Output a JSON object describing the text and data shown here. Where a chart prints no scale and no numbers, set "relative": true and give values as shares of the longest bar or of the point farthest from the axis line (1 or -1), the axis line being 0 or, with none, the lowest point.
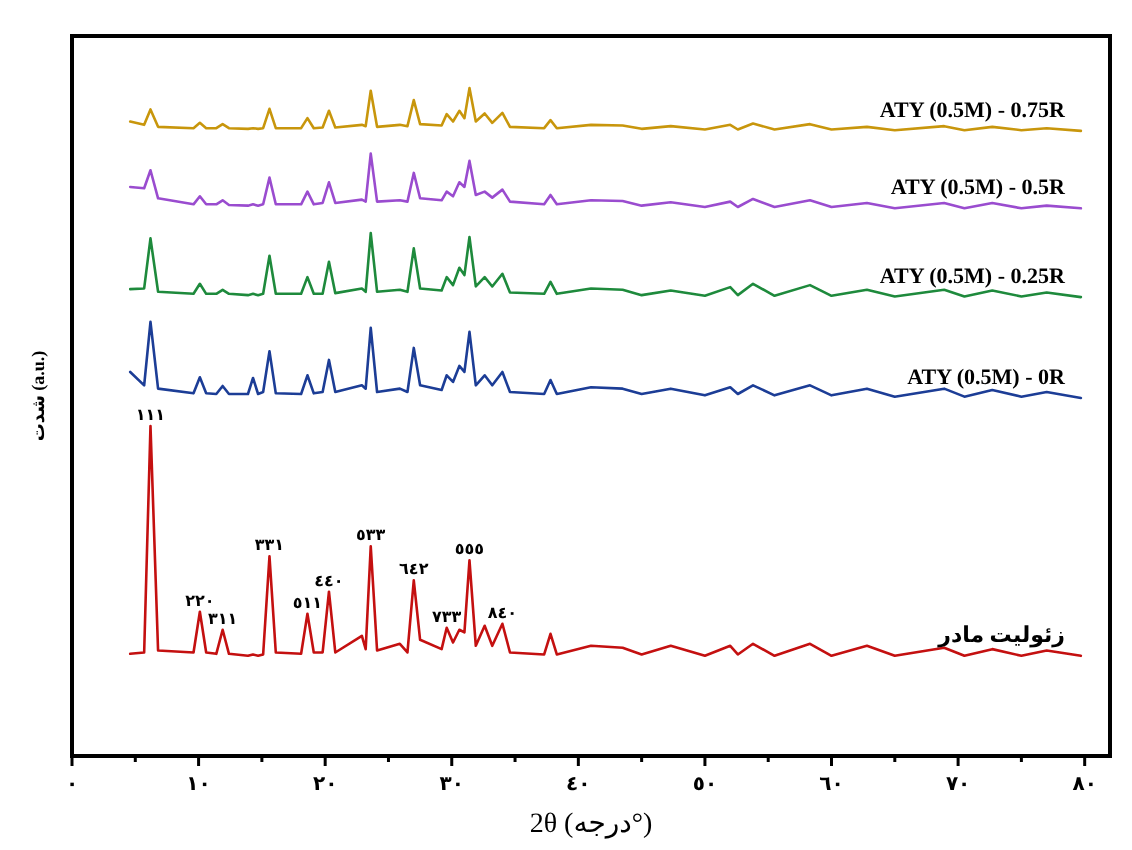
{
  "chart_data": {
    "type": "line",
    "relative": true,
    "xlabel": "2θ (درجه°)",
    "ylabel": "شدت (a.u.)",
    "xlim": [
      0,
      82
    ],
    "xticks": [
      {
        "value": 0,
        "label": "٠"
      },
      {
        "value": 5,
        "label": null
      },
      {
        "value": 10,
        "label": "١٠"
      },
      {
        "value": 15,
        "label": null
      },
      {
        "value": 20,
        "label": "٢٠"
      },
      {
        "value": 25,
        "label": null
      },
      {
        "value": 30,
        "label": "٣٠"
      },
      {
        "value": 35,
        "label": null
      },
      {
        "value": 40,
        "label": "٤٠"
      },
      {
        "value": 45,
        "label": null
      },
      {
        "value": 50,
        "label": "٥٠"
      },
      {
        "value": 55,
        "label": null
      },
      {
        "value": 60,
        "label": "٦٠"
      },
      {
        "value": 65,
        "label": null
      },
      {
        "value": 70,
        "label": "٧٠"
      },
      {
        "value": 75,
        "label": null
      },
      {
        "value": 80,
        "label": "٨٠"
      }
    ],
    "x": [
      4.6,
      5.7,
      6.2,
      6.8,
      9.6,
      10.1,
      10.6,
      11.4,
      11.9,
      12.4,
      13.9,
      14.3,
      14.7,
      15.1,
      15.6,
      16.1,
      18.1,
      18.6,
      19.1,
      19.8,
      20.3,
      20.8,
      22.9,
      23.2,
      23.6,
      24.1,
      25.9,
      26.5,
      27.0,
      27.5,
      29.2,
      29.6,
      30.1,
      30.6,
      31.0,
      31.4,
      31.9,
      32.6,
      33.2,
      34.0,
      34.6,
      37.3,
      37.8,
      38.3,
      41.0,
      43.5,
      45.0,
      47.3,
      50.0,
      52.0,
      52.6,
      53.8,
      55.5,
      58.3,
      60.0,
      62.8,
      65.0,
      68.9,
      70.5,
      72.7,
      75.0,
      77.0,
      79.7
    ],
    "series": [
      {
        "name": "ATY (0.5M) - 0.75R",
        "color": "#c8960c",
        "values": [
          0.95,
          0.945,
          0.968,
          0.942,
          0.94,
          0.948,
          0.94,
          0.94,
          0.946,
          0.94,
          0.939,
          0.94,
          0.939,
          0.94,
          0.969,
          0.94,
          0.94,
          0.955,
          0.94,
          0.941,
          0.966,
          0.941,
          0.945,
          0.943,
          0.996,
          0.942,
          0.945,
          0.943,
          0.982,
          0.946,
          0.944,
          0.961,
          0.95,
          0.966,
          0.955,
          1.0,
          0.95,
          0.962,
          0.948,
          0.963,
          0.942,
          0.94,
          0.952,
          0.94,
          0.945,
          0.944,
          0.939,
          0.943,
          0.938,
          0.945,
          0.938,
          0.947,
          0.938,
          0.946,
          0.938,
          0.942,
          0.937,
          0.943,
          0.937,
          0.942,
          0.937,
          0.94,
          0.936
        ]
      },
      {
        "name": "ATY (0.5M) - 0.5R",
        "color": "#9a4ccf",
        "values": [
          0.852,
          0.85,
          0.877,
          0.835,
          0.826,
          0.838,
          0.826,
          0.826,
          0.832,
          0.825,
          0.824,
          0.826,
          0.824,
          0.826,
          0.866,
          0.826,
          0.826,
          0.845,
          0.826,
          0.828,
          0.859,
          0.828,
          0.833,
          0.83,
          0.902,
          0.83,
          0.832,
          0.83,
          0.873,
          0.835,
          0.832,
          0.845,
          0.838,
          0.859,
          0.852,
          0.891,
          0.84,
          0.845,
          0.836,
          0.848,
          0.83,
          0.826,
          0.84,
          0.826,
          0.832,
          0.831,
          0.824,
          0.829,
          0.822,
          0.83,
          0.822,
          0.834,
          0.822,
          0.832,
          0.822,
          0.828,
          0.82,
          0.828,
          0.82,
          0.828,
          0.82,
          0.824,
          0.82
        ]
      },
      {
        "name": "ATY (0.5M) - 0.25R",
        "color": "#1e8a3c",
        "values": [
          0.699,
          0.7,
          0.775,
          0.695,
          0.692,
          0.707,
          0.692,
          0.692,
          0.698,
          0.692,
          0.69,
          0.692,
          0.69,
          0.692,
          0.749,
          0.692,
          0.692,
          0.717,
          0.692,
          0.692,
          0.74,
          0.693,
          0.7,
          0.695,
          0.783,
          0.695,
          0.698,
          0.695,
          0.76,
          0.7,
          0.697,
          0.717,
          0.705,
          0.731,
          0.72,
          0.777,
          0.703,
          0.717,
          0.703,
          0.722,
          0.694,
          0.692,
          0.71,
          0.692,
          0.7,
          0.698,
          0.69,
          0.697,
          0.689,
          0.702,
          0.69,
          0.707,
          0.689,
          0.705,
          0.689,
          0.698,
          0.688,
          0.698,
          0.688,
          0.697,
          0.688,
          0.694,
          0.687
        ]
      },
      {
        "name": "ATY (0.5M) - 0R",
        "color": "#1c3d96",
        "values": [
          0.575,
          0.555,
          0.65,
          0.55,
          0.543,
          0.567,
          0.543,
          0.542,
          0.554,
          0.542,
          0.542,
          0.566,
          0.542,
          0.545,
          0.606,
          0.543,
          0.542,
          0.57,
          0.543,
          0.545,
          0.593,
          0.545,
          0.555,
          0.55,
          0.641,
          0.545,
          0.55,
          0.545,
          0.611,
          0.555,
          0.548,
          0.57,
          0.56,
          0.584,
          0.575,
          0.635,
          0.555,
          0.57,
          0.555,
          0.575,
          0.545,
          0.542,
          0.563,
          0.542,
          0.552,
          0.55,
          0.542,
          0.55,
          0.54,
          0.552,
          0.542,
          0.555,
          0.54,
          0.555,
          0.54,
          0.55,
          0.538,
          0.55,
          0.538,
          0.548,
          0.538,
          0.545,
          0.536
        ]
      },
      {
        "name": "زئولیت مادر",
        "color": "#c41010",
        "values": [
          0.153,
          0.155,
          0.494,
          0.158,
          0.155,
          0.216,
          0.155,
          0.153,
          0.189,
          0.153,
          0.15,
          0.152,
          0.15,
          0.152,
          0.299,
          0.155,
          0.153,
          0.213,
          0.155,
          0.155,
          0.246,
          0.155,
          0.18,
          0.16,
          0.314,
          0.158,
          0.168,
          0.155,
          0.263,
          0.174,
          0.16,
          0.192,
          0.17,
          0.189,
          0.185,
          0.293,
          0.165,
          0.195,
          0.165,
          0.198,
          0.155,
          0.152,
          0.183,
          0.152,
          0.165,
          0.162,
          0.152,
          0.165,
          0.15,
          0.165,
          0.152,
          0.168,
          0.15,
          0.168,
          0.15,
          0.165,
          0.15,
          0.162,
          0.15,
          0.16,
          0.15,
          0.158,
          0.15
        ]
      }
    ],
    "annotations": [
      {
        "text": "١١١",
        "x": 6.2,
        "y": 0.494
      },
      {
        "text": "٢٢٠",
        "x": 10.1,
        "y": 0.216
      },
      {
        "text": "٣١١",
        "x": 11.9,
        "y": 0.189
      },
      {
        "text": "٣٣١",
        "x": 15.6,
        "y": 0.299
      },
      {
        "text": "٥١١",
        "x": 18.6,
        "y": 0.213
      },
      {
        "text": "٤٤٠",
        "x": 20.3,
        "y": 0.246
      },
      {
        "text": "٥٣٣",
        "x": 23.6,
        "y": 0.314
      },
      {
        "text": "٦٤٢",
        "x": 27.0,
        "y": 0.263
      },
      {
        "text": "٧٣٣",
        "x": 29.6,
        "y": 0.192
      },
      {
        "text": "٥٥٥",
        "x": 31.4,
        "y": 0.293
      },
      {
        "text": "٨٤٠",
        "x": 34.0,
        "y": 0.198
      }
    ]
  }
}
